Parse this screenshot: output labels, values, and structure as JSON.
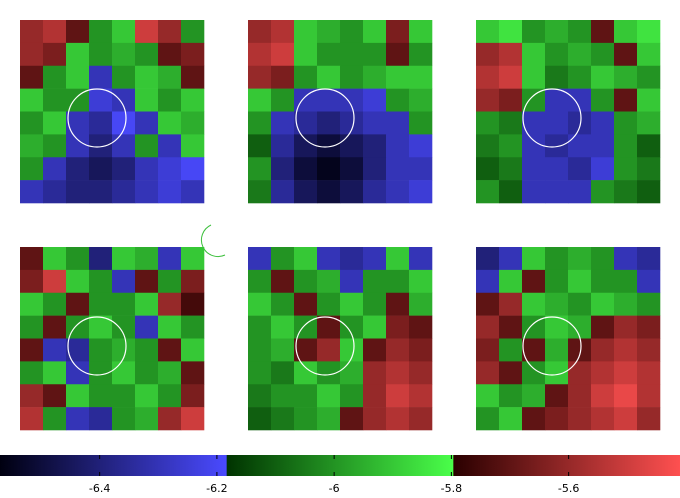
{
  "chart_data": {
    "type": "heatmap",
    "clim": [
      -6.57,
      -5.41
    ],
    "colorbar_ticks": [
      -6.4,
      -6.2,
      -6,
      -5.8,
      -5.6
    ],
    "colormap": [
      [
        "#000010",
        "#4a4aff"
      ],
      [
        "#003300",
        "#4aff4a"
      ],
      [
        "#2a0000",
        "#ff5050"
      ]
    ],
    "panels": [
      {
        "values": [
          [
            -5.6,
            -5.55,
            -5.7,
            -6.0,
            -5.9,
            -5.5,
            -5.6,
            -6.0
          ],
          [
            -5.6,
            -5.65,
            -5.9,
            -6.0,
            -5.95,
            -6.0,
            -5.7,
            -5.65
          ],
          [
            -5.7,
            -6.0,
            -5.9,
            -6.3,
            -6.0,
            -5.9,
            -5.95,
            -5.7
          ],
          [
            -5.9,
            -6.0,
            -6.0,
            -6.25,
            -6.3,
            -5.9,
            -6.0,
            -5.9
          ],
          [
            -6.0,
            -5.9,
            -6.3,
            -6.35,
            -6.2,
            -6.3,
            -5.9,
            -5.95
          ],
          [
            -5.95,
            -6.0,
            -6.3,
            -6.4,
            -6.3,
            -6.0,
            -6.3,
            -5.9
          ],
          [
            -6.0,
            -6.3,
            -6.4,
            -6.45,
            -6.4,
            -6.3,
            -6.25,
            -6.2
          ],
          [
            -6.3,
            -6.35,
            -6.4,
            -6.4,
            -6.35,
            -6.3,
            -6.25,
            -6.3
          ]
        ]
      },
      {
        "values": [
          [
            -5.6,
            -5.55,
            -5.9,
            -5.95,
            -6.0,
            -5.9,
            -5.65,
            -5.9
          ],
          [
            -5.55,
            -5.5,
            -5.9,
            -6.0,
            -6.0,
            -6.0,
            -5.7,
            -6.0
          ],
          [
            -5.6,
            -5.65,
            -6.0,
            -5.9,
            -6.0,
            -5.95,
            -5.9,
            -5.9
          ],
          [
            -5.9,
            -6.0,
            -6.3,
            -6.3,
            -6.3,
            -6.25,
            -6.0,
            -5.95
          ],
          [
            -6.0,
            -6.3,
            -6.35,
            -6.4,
            -6.35,
            -6.3,
            -6.3,
            -6.0
          ],
          [
            -6.1,
            -6.35,
            -6.45,
            -6.5,
            -6.45,
            -6.4,
            -6.3,
            -6.25
          ],
          [
            -6.0,
            -6.4,
            -6.5,
            -6.55,
            -6.5,
            -6.4,
            -6.3,
            -6.3
          ],
          [
            -6.05,
            -6.35,
            -6.45,
            -6.5,
            -6.45,
            -6.35,
            -6.3,
            -6.25
          ]
        ]
      },
      {
        "values": [
          [
            -5.9,
            -5.85,
            -6.0,
            -5.95,
            -6.0,
            -5.7,
            -5.9,
            -5.85
          ],
          [
            -5.6,
            -5.55,
            -5.9,
            -6.0,
            -5.95,
            -6.0,
            -5.7,
            -5.9
          ],
          [
            -5.55,
            -5.5,
            -5.9,
            -6.05,
            -6.0,
            -5.9,
            -5.95,
            -6.0
          ],
          [
            -5.6,
            -5.65,
            -6.0,
            -6.3,
            -6.3,
            -6.0,
            -5.7,
            -5.9
          ],
          [
            -6.0,
            -6.05,
            -6.3,
            -6.3,
            -6.35,
            -6.3,
            -6.0,
            -5.95
          ],
          [
            -6.05,
            -6.0,
            -6.3,
            -6.35,
            -6.3,
            -6.3,
            -6.0,
            -6.1
          ],
          [
            -6.1,
            -6.05,
            -6.3,
            -6.3,
            -6.35,
            -6.25,
            -6.0,
            -6.05
          ],
          [
            -6.0,
            -6.1,
            -6.3,
            -6.3,
            -6.3,
            -6.0,
            -6.05,
            -6.1
          ]
        ]
      },
      {
        "values": [
          [
            -5.7,
            -5.9,
            -6.0,
            -6.4,
            -5.9,
            -5.95,
            -6.3,
            -5.9
          ],
          [
            -5.65,
            -5.5,
            -5.9,
            -6.0,
            -6.3,
            -5.7,
            -6.0,
            -5.65
          ],
          [
            -5.9,
            -6.0,
            -5.7,
            -6.0,
            -6.0,
            -5.9,
            -5.6,
            -5.75
          ],
          [
            -6.0,
            -5.7,
            -6.0,
            -5.9,
            -6.0,
            -6.3,
            -5.9,
            -6.0
          ],
          [
            -5.7,
            -6.3,
            -6.35,
            -6.0,
            -5.95,
            -6.0,
            -5.7,
            -5.9
          ],
          [
            -6.0,
            -5.9,
            -6.3,
            -6.0,
            -5.9,
            -6.0,
            -5.95,
            -5.7
          ],
          [
            -5.6,
            -5.7,
            -5.9,
            -6.0,
            -6.0,
            -5.9,
            -6.0,
            -5.65
          ],
          [
            -5.55,
            -6.0,
            -6.3,
            -6.35,
            -6.0,
            -5.95,
            -5.6,
            -5.5
          ]
        ]
      },
      {
        "values": [
          [
            -6.3,
            -6.0,
            -5.9,
            -6.3,
            -6.35,
            -6.3,
            -5.9,
            -6.3
          ],
          [
            -6.0,
            -5.7,
            -6.0,
            -5.95,
            -6.3,
            -6.0,
            -6.0,
            -5.9
          ],
          [
            -5.9,
            -6.0,
            -5.7,
            -6.0,
            -5.9,
            -6.0,
            -5.7,
            -5.95
          ],
          [
            -6.0,
            -5.9,
            -6.0,
            -5.7,
            -6.0,
            -5.9,
            -5.65,
            -5.7
          ],
          [
            -6.0,
            -5.95,
            -5.7,
            -5.6,
            -5.9,
            -5.7,
            -5.6,
            -5.65
          ],
          [
            -6.0,
            -6.05,
            -5.9,
            -6.0,
            -5.95,
            -5.6,
            -5.55,
            -5.6
          ],
          [
            -6.05,
            -6.0,
            -6.0,
            -5.9,
            -6.0,
            -5.6,
            -5.5,
            -5.55
          ],
          [
            -6.1,
            -6.05,
            -6.0,
            -5.95,
            -5.7,
            -5.6,
            -5.55,
            -5.6
          ]
        ]
      },
      {
        "values": [
          [
            -6.4,
            -6.3,
            -5.9,
            -6.0,
            -5.95,
            -6.0,
            -6.3,
            -6.35
          ],
          [
            -6.3,
            -5.9,
            -5.7,
            -6.0,
            -5.9,
            -6.0,
            -6.0,
            -6.3
          ],
          [
            -5.7,
            -5.6,
            -5.9,
            -5.95,
            -6.0,
            -5.9,
            -5.95,
            -6.0
          ],
          [
            -5.6,
            -5.7,
            -6.0,
            -5.9,
            -5.95,
            -5.7,
            -5.6,
            -5.65
          ],
          [
            -5.65,
            -6.0,
            -5.7,
            -5.95,
            -5.7,
            -5.6,
            -5.55,
            -5.6
          ],
          [
            -5.6,
            -5.7,
            -6.0,
            -5.9,
            -5.6,
            -5.55,
            -5.5,
            -5.55
          ],
          [
            -5.9,
            -6.0,
            -5.95,
            -5.7,
            -5.6,
            -5.5,
            -5.45,
            -5.55
          ],
          [
            -6.0,
            -5.9,
            -5.7,
            -5.65,
            -5.6,
            -5.55,
            -5.5,
            -5.6
          ]
        ]
      }
    ]
  }
}
